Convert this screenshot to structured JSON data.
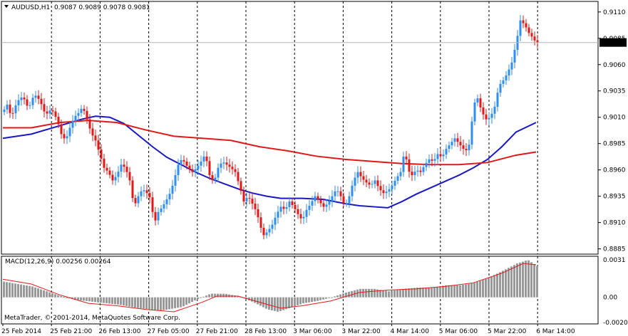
{
  "header": {
    "symbol": "AUDUSD,H1",
    "ohlc": "0.9087 0.9089 0.9078 0.9081"
  },
  "footer": {
    "copyright": "MetaTrader, © 2001-2014, MetaQuotes Software Corp."
  },
  "colors": {
    "bull": "#2f8ff0",
    "bear": "#e01818",
    "ma_fast": "#e01818",
    "ma_slow": "#1818c8",
    "macd_hist": "#9a9a9a",
    "macd_signal": "#e01818",
    "grid": "#000000",
    "border": "#000000",
    "current_price_line": "#b4b4b4",
    "current_price_label_bg": "#000000"
  },
  "chart_data": [
    {
      "type": "candlestick",
      "symbol": "AUDUSD",
      "timeframe": "H1",
      "ylim": [
        0.888,
        0.912
      ],
      "y_ticks": [
        "0.9110",
        "0.9085",
        "0.9060",
        "0.9035",
        "0.9010",
        "0.8985",
        "0.8960",
        "0.8935",
        "0.8910",
        "0.8885"
      ],
      "current_price": "0.9081",
      "x_tick_labels": [
        "25 Feb 2014",
        "25 Feb 21:00",
        "26 Feb 13:00",
        "27 Feb 05:00",
        "27 Feb 21:00",
        "28 Feb 13:00",
        "3 Mar 06:00",
        "3 Mar 22:00",
        "4 Mar 14:00",
        "5 Mar 06:00",
        "5 Mar 22:00",
        "6 Mar 14:00"
      ],
      "grid": "vertical dashed at each time label",
      "price_path": [
        [
          0,
          0.9015
        ],
        [
          6,
          0.9022
        ],
        [
          12,
          0.901
        ],
        [
          20,
          0.9025
        ],
        [
          28,
          0.903
        ],
        [
          36,
          0.9018
        ],
        [
          44,
          0.9032
        ],
        [
          52,
          0.9026
        ],
        [
          60,
          0.9012
        ],
        [
          68,
          0.9018
        ],
        [
          76,
          0.9008
        ],
        [
          82,
          0.8994
        ],
        [
          88,
          0.8988
        ],
        [
          94,
          0.9
        ],
        [
          100,
          0.901
        ],
        [
          106,
          0.9014
        ],
        [
          112,
          0.902
        ],
        [
          118,
          0.9008
        ],
        [
          124,
          0.8995
        ],
        [
          130,
          0.8988
        ],
        [
          136,
          0.8975
        ],
        [
          142,
          0.8962
        ],
        [
          148,
          0.8958
        ],
        [
          154,
          0.895
        ],
        [
          160,
          0.8955
        ],
        [
          166,
          0.8965
        ],
        [
          172,
          0.8962
        ],
        [
          178,
          0.895
        ],
        [
          184,
          0.8925
        ],
        [
          190,
          0.8935
        ],
        [
          196,
          0.8942
        ],
        [
          202,
          0.8938
        ],
        [
          208,
          0.8932
        ],
        [
          212,
          0.8908
        ],
        [
          218,
          0.892
        ],
        [
          224,
          0.8925
        ],
        [
          230,
          0.8932
        ],
        [
          236,
          0.894
        ],
        [
          242,
          0.8955
        ],
        [
          248,
          0.897
        ],
        [
          254,
          0.8968
        ],
        [
          260,
          0.8962
        ],
        [
          266,
          0.8958
        ],
        [
          272,
          0.8962
        ],
        [
          278,
          0.8968
        ],
        [
          284,
          0.8975
        ],
        [
          290,
          0.8955
        ],
        [
          296,
          0.8948
        ],
        [
          302,
          0.8962
        ],
        [
          308,
          0.8968
        ],
        [
          314,
          0.8965
        ],
        [
          320,
          0.8962
        ],
        [
          326,
          0.8958
        ],
        [
          332,
          0.8945
        ],
        [
          338,
          0.893
        ],
        [
          344,
          0.8935
        ],
        [
          350,
          0.8928
        ],
        [
          356,
          0.892
        ],
        [
          362,
          0.8905
        ],
        [
          366,
          0.8898
        ],
        [
          372,
          0.8902
        ],
        [
          378,
          0.8908
        ],
        [
          384,
          0.8918
        ],
        [
          390,
          0.8925
        ],
        [
          396,
          0.8922
        ],
        [
          402,
          0.893
        ],
        [
          408,
          0.8925
        ],
        [
          414,
          0.8918
        ],
        [
          420,
          0.8912
        ],
        [
          426,
          0.8922
        ],
        [
          432,
          0.8928
        ],
        [
          438,
          0.8935
        ],
        [
          444,
          0.893
        ],
        [
          450,
          0.8925
        ],
        [
          456,
          0.8928
        ],
        [
          462,
          0.8935
        ],
        [
          468,
          0.8942
        ],
        [
          474,
          0.8935
        ],
        [
          480,
          0.8925
        ],
        [
          486,
          0.8935
        ],
        [
          492,
          0.895
        ],
        [
          498,
          0.8958
        ],
        [
          504,
          0.8952
        ],
        [
          510,
          0.8948
        ],
        [
          516,
          0.8945
        ],
        [
          522,
          0.895
        ],
        [
          528,
          0.8942
        ],
        [
          534,
          0.8938
        ],
        [
          540,
          0.894
        ],
        [
          546,
          0.8945
        ],
        [
          552,
          0.8952
        ],
        [
          558,
          0.8958
        ],
        [
          564,
          0.898
        ],
        [
          568,
          0.896
        ],
        [
          574,
          0.8955
        ],
        [
          580,
          0.896
        ],
        [
          586,
          0.8958
        ],
        [
          592,
          0.8965
        ],
        [
          598,
          0.897
        ],
        [
          604,
          0.8968
        ],
        [
          610,
          0.8975
        ],
        [
          616,
          0.8972
        ],
        [
          622,
          0.898
        ],
        [
          628,
          0.8985
        ],
        [
          634,
          0.899
        ],
        [
          640,
          0.8985
        ],
        [
          646,
          0.898
        ],
        [
          652,
          0.8978
        ],
        [
          656,
          0.899
        ],
        [
          660,
          0.9022
        ],
        [
          666,
          0.9028
        ],
        [
          672,
          0.9015
        ],
        [
          678,
          0.9008
        ],
        [
          684,
          0.901
        ],
        [
          690,
          0.902
        ],
        [
          696,
          0.904
        ],
        [
          702,
          0.9045
        ],
        [
          708,
          0.9052
        ],
        [
          714,
          0.9062
        ],
        [
          720,
          0.908
        ],
        [
          726,
          0.9102
        ],
        [
          732,
          0.9098
        ],
        [
          738,
          0.909
        ],
        [
          744,
          0.9085
        ],
        [
          748,
          0.9081
        ]
      ],
      "ma_fast": [
        [
          0,
          0.9
        ],
        [
          40,
          0.9
        ],
        [
          80,
          0.9005
        ],
        [
          120,
          0.9007
        ],
        [
          160,
          0.9005
        ],
        [
          200,
          0.8998
        ],
        [
          240,
          0.8992
        ],
        [
          280,
          0.899
        ],
        [
          320,
          0.8988
        ],
        [
          360,
          0.8982
        ],
        [
          400,
          0.8978
        ],
        [
          440,
          0.8973
        ],
        [
          480,
          0.897
        ],
        [
          520,
          0.8968
        ],
        [
          560,
          0.8966
        ],
        [
          600,
          0.8965
        ],
        [
          640,
          0.8965
        ],
        [
          680,
          0.8967
        ],
        [
          720,
          0.8974
        ],
        [
          748,
          0.8977
        ]
      ],
      "ma_slow": [
        [
          0,
          0.899
        ],
        [
          40,
          0.8994
        ],
        [
          80,
          0.9002
        ],
        [
          110,
          0.9008
        ],
        [
          130,
          0.9011
        ],
        [
          150,
          0.901
        ],
        [
          170,
          0.9004
        ],
        [
          190,
          0.8993
        ],
        [
          210,
          0.8982
        ],
        [
          230,
          0.8972
        ],
        [
          250,
          0.8965
        ],
        [
          270,
          0.8958
        ],
        [
          290,
          0.8952
        ],
        [
          310,
          0.8947
        ],
        [
          330,
          0.8942
        ],
        [
          350,
          0.8938
        ],
        [
          370,
          0.8935
        ],
        [
          390,
          0.8933
        ],
        [
          420,
          0.8933
        ],
        [
          450,
          0.8932
        ],
        [
          480,
          0.8928
        ],
        [
          500,
          0.8926
        ],
        [
          520,
          0.8925
        ],
        [
          540,
          0.8924
        ],
        [
          560,
          0.893
        ],
        [
          580,
          0.8937
        ],
        [
          600,
          0.8943
        ],
        [
          620,
          0.8949
        ],
        [
          640,
          0.8955
        ],
        [
          660,
          0.8962
        ],
        [
          680,
          0.897
        ],
        [
          700,
          0.8982
        ],
        [
          720,
          0.8996
        ],
        [
          748,
          0.9005
        ]
      ]
    },
    {
      "type": "bar",
      "indicator": "MACD",
      "label": "MACD(12,26,9) 0.00256 0.00264",
      "ylim": [
        -0.0022,
        0.0034
      ],
      "y_ticks": [
        "0.0031",
        "0.00",
        "-0.00209"
      ],
      "histogram": [
        [
          0,
          0.0013
        ],
        [
          20,
          0.0011
        ],
        [
          40,
          0.0009
        ],
        [
          60,
          0.0005
        ],
        [
          80,
          0.0001
        ],
        [
          100,
          -0.0002
        ],
        [
          130,
          -0.0004
        ],
        [
          160,
          -0.0006
        ],
        [
          190,
          -0.0009
        ],
        [
          220,
          -0.0011
        ],
        [
          250,
          -0.0008
        ],
        [
          270,
          -0.0002
        ],
        [
          290,
          0.0003
        ],
        [
          310,
          0.0003
        ],
        [
          330,
          0.0001
        ],
        [
          350,
          -0.0004
        ],
        [
          370,
          -0.001
        ],
        [
          385,
          -0.0012
        ],
        [
          400,
          -0.0009
        ],
        [
          420,
          -0.0005
        ],
        [
          440,
          -0.0003
        ],
        [
          460,
          0.0
        ],
        [
          480,
          0.0004
        ],
        [
          500,
          0.0007
        ],
        [
          520,
          0.0007
        ],
        [
          540,
          0.0005
        ],
        [
          560,
          0.0007
        ],
        [
          580,
          0.0008
        ],
        [
          600,
          0.0008
        ],
        [
          620,
          0.001
        ],
        [
          640,
          0.001
        ],
        [
          660,
          0.0012
        ],
        [
          680,
          0.0016
        ],
        [
          700,
          0.0022
        ],
        [
          720,
          0.0028
        ],
        [
          735,
          0.0031
        ],
        [
          748,
          0.0026
        ]
      ],
      "signal": [
        [
          0,
          0.0015
        ],
        [
          40,
          0.0011
        ],
        [
          80,
          0.0002
        ],
        [
          120,
          -0.0005
        ],
        [
          160,
          -0.0007
        ],
        [
          200,
          -0.001
        ],
        [
          240,
          -0.0012
        ],
        [
          280,
          -0.0004
        ],
        [
          300,
          0.0001
        ],
        [
          330,
          0.0001
        ],
        [
          360,
          -0.0004
        ],
        [
          390,
          -0.0009
        ],
        [
          420,
          -0.0007
        ],
        [
          460,
          -0.0003
        ],
        [
          500,
          0.0004
        ],
        [
          540,
          0.0006
        ],
        [
          580,
          0.0007
        ],
        [
          620,
          0.0009
        ],
        [
          660,
          0.0012
        ],
        [
          700,
          0.002
        ],
        [
          730,
          0.0028
        ],
        [
          748,
          0.0027
        ]
      ]
    }
  ]
}
